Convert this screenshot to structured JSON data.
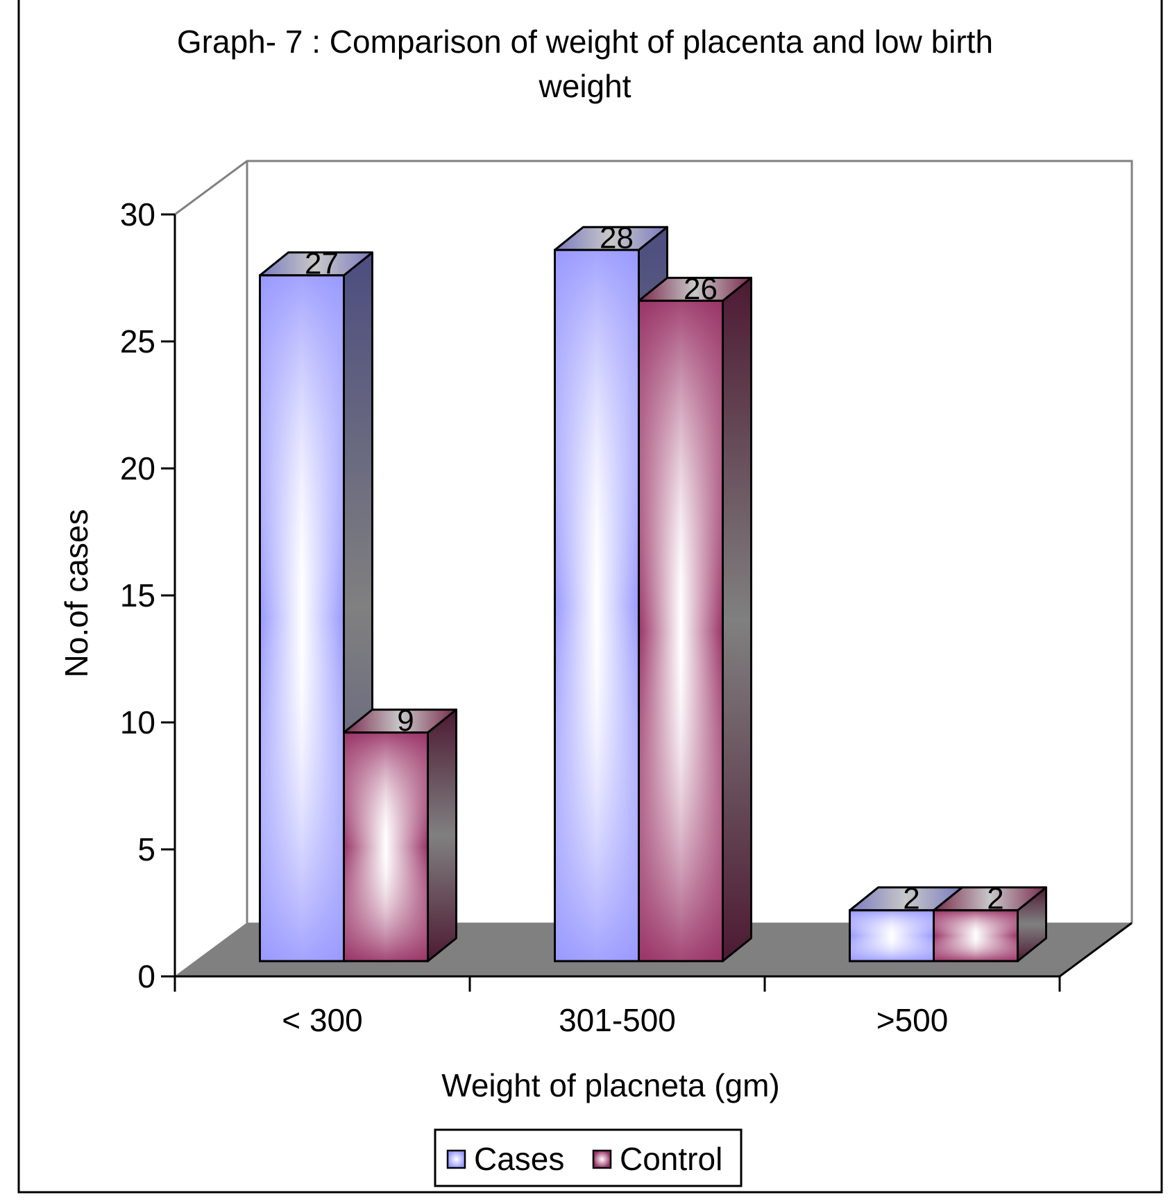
{
  "chart_data": {
    "type": "bar",
    "style": "3d-clustered-column",
    "title_lines": [
      "Graph- 7 : Comparison of weight of placenta and low  birth",
      "weight"
    ],
    "xlabel": "Weight of placneta (gm)",
    "ylabel": "No.of cases",
    "categories": [
      "< 300",
      "301-500",
      ">500"
    ],
    "series": [
      {
        "name": "Cases",
        "values": [
          27,
          28,
          2
        ],
        "color": "#9999ff",
        "side_color": "#4d4d80"
      },
      {
        "name": "Control",
        "values": [
          9,
          26,
          2
        ],
        "color": "#993366",
        "side_color": "#4d1a33"
      }
    ],
    "ylim": [
      0,
      30
    ],
    "yticks": [
      0,
      5,
      10,
      15,
      20,
      25,
      30
    ],
    "grid": false,
    "data_labels": true,
    "legend": {
      "position": "bottom",
      "entries": [
        "Cases",
        "Control"
      ]
    },
    "floor_color": "#808080"
  }
}
